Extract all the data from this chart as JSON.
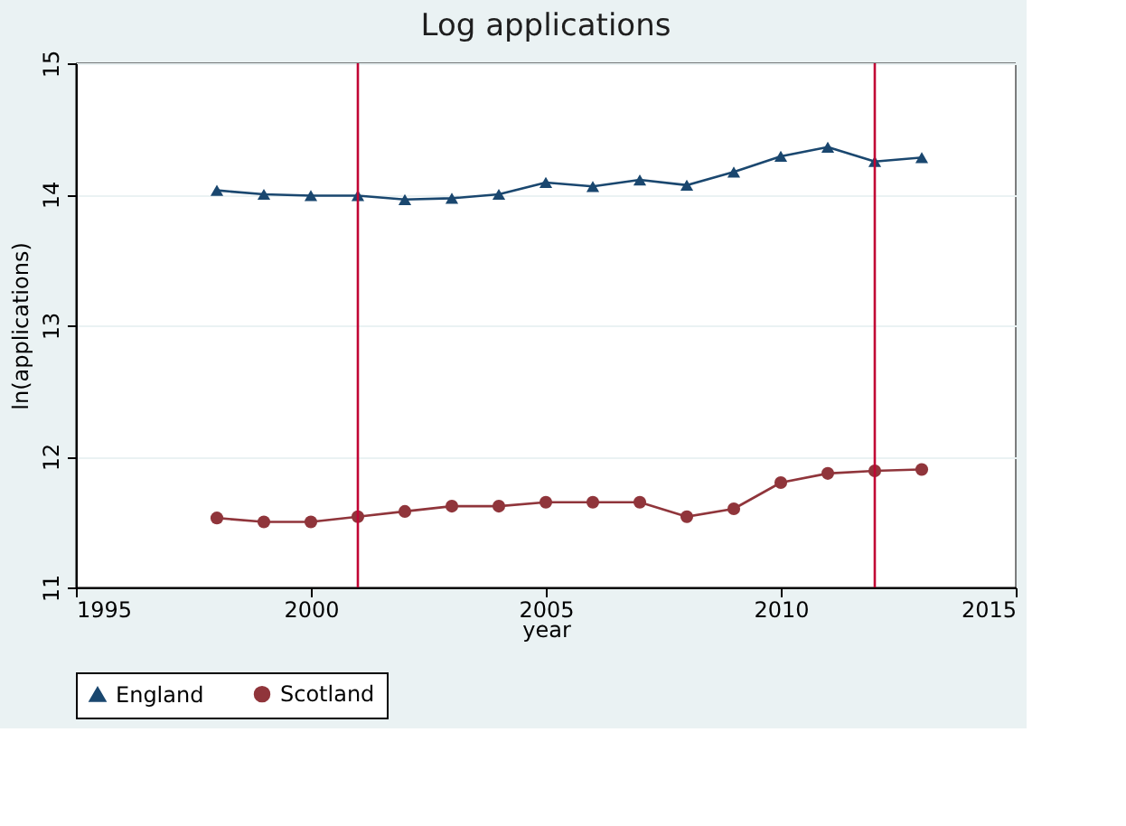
{
  "chart_data": {
    "type": "line",
    "title": "Log applications",
    "xlabel": "year",
    "ylabel": "ln(applications)",
    "x": [
      1998,
      1999,
      2000,
      2001,
      2002,
      2003,
      2004,
      2005,
      2006,
      2007,
      2008,
      2009,
      2010,
      2011,
      2012,
      2013
    ],
    "series": [
      {
        "name": "England",
        "color": "#1a476f",
        "marker": "triangle",
        "values": [
          14.03,
          14.0,
          13.99,
          13.99,
          13.96,
          13.97,
          14.0,
          14.09,
          14.06,
          14.11,
          14.07,
          14.17,
          14.29,
          14.36,
          14.25,
          14.28
        ]
      },
      {
        "name": "Scotland",
        "color": "#90353b",
        "marker": "circle",
        "values": [
          11.53,
          11.5,
          11.5,
          11.54,
          11.58,
          11.62,
          11.62,
          11.65,
          11.65,
          11.65,
          11.54,
          11.6,
          11.8,
          11.87,
          11.89,
          11.9
        ]
      }
    ],
    "xlim": [
      1995,
      2015
    ],
    "xticks": [
      1995,
      2000,
      2005,
      2010,
      2015
    ],
    "ylim": [
      11,
      15
    ],
    "yticks": [
      11,
      12,
      13,
      14,
      15
    ],
    "ref_lines": [
      {
        "axis": "x",
        "value": 2001,
        "color": "#c10534"
      },
      {
        "axis": "x",
        "value": 2012,
        "color": "#c10534"
      }
    ],
    "grid": "y",
    "legend": "bottom",
    "line_style": "solid"
  }
}
